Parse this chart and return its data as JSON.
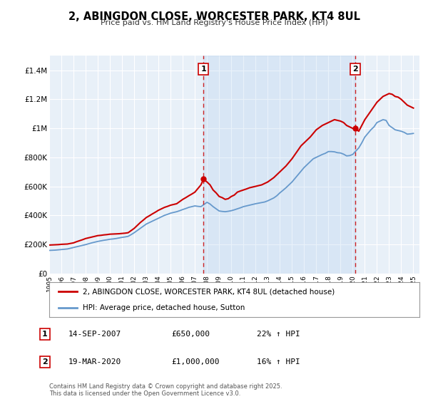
{
  "title": "2, ABINGDON CLOSE, WORCESTER PARK, KT4 8UL",
  "subtitle": "Price paid vs. HM Land Registry's House Price Index (HPI)",
  "legend_line1": "2, ABINGDON CLOSE, WORCESTER PARK, KT4 8UL (detached house)",
  "legend_line2": "HPI: Average price, detached house, Sutton",
  "marker1_date": "14-SEP-2007",
  "marker1_price": "£650,000",
  "marker1_hpi": "22% ↑ HPI",
  "marker1_year": 2007.71,
  "marker1_value": 650000,
  "marker2_date": "19-MAR-2020",
  "marker2_price": "£1,000,000",
  "marker2_hpi": "16% ↑ HPI",
  "marker2_year": 2020.21,
  "marker2_value": 1000000,
  "red_color": "#cc0000",
  "blue_color": "#6699cc",
  "plot_bg": "#e8f0f8",
  "shade_bg": "#ddeeff",
  "grid_color": "#ffffff",
  "footer": "Contains HM Land Registry data © Crown copyright and database right 2025.\nThis data is licensed under the Open Government Licence v3.0.",
  "ylim": [
    0,
    1500000
  ],
  "yticks": [
    0,
    200000,
    400000,
    600000,
    800000,
    1000000,
    1200000,
    1400000
  ],
  "ytick_labels": [
    "£0",
    "£200K",
    "£400K",
    "£600K",
    "£800K",
    "£1M",
    "£1.2M",
    "£1.4M"
  ],
  "xlim_start": 1995.0,
  "xlim_end": 2025.5,
  "red_x": [
    1995.0,
    1995.25,
    1995.5,
    1995.75,
    1996.0,
    1996.25,
    1996.5,
    1996.75,
    1997.0,
    1997.25,
    1997.5,
    1997.75,
    1998.0,
    1998.25,
    1998.5,
    1998.75,
    1999.0,
    1999.25,
    1999.5,
    1999.75,
    2000.0,
    2000.25,
    2000.5,
    2000.75,
    2001.0,
    2001.25,
    2001.5,
    2001.75,
    2002.0,
    2002.25,
    2002.5,
    2002.75,
    2003.0,
    2003.25,
    2003.5,
    2003.75,
    2004.0,
    2004.25,
    2004.5,
    2004.75,
    2005.0,
    2005.25,
    2005.5,
    2005.75,
    2006.0,
    2006.25,
    2006.5,
    2006.75,
    2007.0,
    2007.25,
    2007.5,
    2007.71,
    2008.0,
    2008.25,
    2008.5,
    2008.75,
    2009.0,
    2009.25,
    2009.5,
    2009.75,
    2010.0,
    2010.25,
    2010.5,
    2010.75,
    2011.0,
    2011.25,
    2011.5,
    2011.75,
    2012.0,
    2012.25,
    2012.5,
    2012.75,
    2013.0,
    2013.25,
    2013.5,
    2013.75,
    2014.0,
    2014.25,
    2014.5,
    2014.75,
    2015.0,
    2015.25,
    2015.5,
    2015.75,
    2016.0,
    2016.25,
    2016.5,
    2016.75,
    2017.0,
    2017.25,
    2017.5,
    2017.75,
    2018.0,
    2018.25,
    2018.5,
    2018.75,
    2019.0,
    2019.25,
    2019.5,
    2019.75,
    2020.0,
    2020.21,
    2020.5,
    2020.75,
    2021.0,
    2021.25,
    2021.5,
    2021.75,
    2022.0,
    2022.25,
    2022.5,
    2022.75,
    2023.0,
    2023.25,
    2023.5,
    2023.75,
    2024.0,
    2024.25,
    2024.5,
    2024.75,
    2025.0
  ],
  "red_y": [
    195000,
    196000,
    197000,
    198000,
    200000,
    201000,
    202000,
    206000,
    210000,
    218000,
    225000,
    232000,
    240000,
    245000,
    250000,
    255000,
    260000,
    262000,
    265000,
    267000,
    270000,
    271000,
    272000,
    273000,
    275000,
    277000,
    280000,
    295000,
    310000,
    330000,
    350000,
    367000,
    385000,
    397000,
    410000,
    422000,
    435000,
    445000,
    455000,
    462000,
    470000,
    475000,
    480000,
    495000,
    510000,
    522000,
    535000,
    547000,
    560000,
    585000,
    610000,
    650000,
    630000,
    610000,
    575000,
    555000,
    530000,
    522000,
    510000,
    515000,
    530000,
    540000,
    560000,
    568000,
    575000,
    582000,
    590000,
    595000,
    600000,
    605000,
    610000,
    620000,
    630000,
    645000,
    660000,
    680000,
    700000,
    720000,
    740000,
    765000,
    790000,
    820000,
    850000,
    880000,
    900000,
    920000,
    940000,
    965000,
    990000,
    1005000,
    1020000,
    1030000,
    1040000,
    1050000,
    1060000,
    1055000,
    1050000,
    1040000,
    1020000,
    1010000,
    1000000,
    1000000,
    980000,
    1020000,
    1060000,
    1090000,
    1120000,
    1150000,
    1180000,
    1200000,
    1220000,
    1230000,
    1240000,
    1235000,
    1220000,
    1215000,
    1200000,
    1180000,
    1160000,
    1150000,
    1140000
  ],
  "blue_x": [
    1995.0,
    1995.25,
    1995.5,
    1995.75,
    1996.0,
    1996.25,
    1996.5,
    1996.75,
    1997.0,
    1997.25,
    1997.5,
    1997.75,
    1998.0,
    1998.25,
    1998.5,
    1998.75,
    1999.0,
    1999.25,
    1999.5,
    1999.75,
    2000.0,
    2000.25,
    2000.5,
    2000.75,
    2001.0,
    2001.25,
    2001.5,
    2001.75,
    2002.0,
    2002.25,
    2002.5,
    2002.75,
    2003.0,
    2003.25,
    2003.5,
    2003.75,
    2004.0,
    2004.25,
    2004.5,
    2004.75,
    2005.0,
    2005.25,
    2005.5,
    2005.75,
    2006.0,
    2006.25,
    2006.5,
    2006.75,
    2007.0,
    2007.25,
    2007.5,
    2008.0,
    2008.25,
    2008.5,
    2008.75,
    2009.0,
    2009.25,
    2009.5,
    2009.75,
    2010.0,
    2010.25,
    2010.5,
    2010.75,
    2011.0,
    2011.25,
    2011.5,
    2011.75,
    2012.0,
    2012.25,
    2012.5,
    2012.75,
    2013.0,
    2013.25,
    2013.5,
    2013.75,
    2014.0,
    2014.25,
    2014.5,
    2014.75,
    2015.0,
    2015.25,
    2015.5,
    2015.75,
    2016.0,
    2016.25,
    2016.5,
    2016.75,
    2017.0,
    2017.25,
    2017.5,
    2017.75,
    2018.0,
    2018.25,
    2018.5,
    2018.75,
    2019.0,
    2019.25,
    2019.5,
    2019.75,
    2020.0,
    2020.5,
    2020.75,
    2021.0,
    2021.25,
    2021.5,
    2021.75,
    2022.0,
    2022.25,
    2022.5,
    2022.75,
    2023.0,
    2023.25,
    2023.5,
    2023.75,
    2024.0,
    2024.25,
    2024.5,
    2024.75,
    2025.0
  ],
  "blue_y": [
    158000,
    159000,
    160000,
    162000,
    164000,
    166000,
    168000,
    173000,
    178000,
    183000,
    188000,
    193000,
    198000,
    204000,
    210000,
    215000,
    220000,
    224000,
    228000,
    231000,
    235000,
    237000,
    240000,
    244000,
    248000,
    251000,
    255000,
    267000,
    280000,
    295000,
    310000,
    325000,
    340000,
    350000,
    360000,
    370000,
    380000,
    390000,
    400000,
    407000,
    415000,
    420000,
    425000,
    432000,
    440000,
    447000,
    455000,
    460000,
    465000,
    462000,
    460000,
    490000,
    478000,
    460000,
    445000,
    430000,
    427000,
    425000,
    428000,
    432000,
    438000,
    445000,
    452000,
    460000,
    465000,
    470000,
    475000,
    480000,
    484000,
    488000,
    492000,
    500000,
    510000,
    520000,
    535000,
    555000,
    572000,
    590000,
    610000,
    630000,
    655000,
    680000,
    705000,
    730000,
    750000,
    770000,
    790000,
    800000,
    810000,
    820000,
    828000,
    840000,
    840000,
    838000,
    832000,
    830000,
    822000,
    810000,
    812000,
    820000,
    865000,
    900000,
    940000,
    965000,
    990000,
    1010000,
    1040000,
    1050000,
    1060000,
    1055000,
    1020000,
    1005000,
    990000,
    985000,
    980000,
    972000,
    960000,
    962000,
    965000
  ]
}
